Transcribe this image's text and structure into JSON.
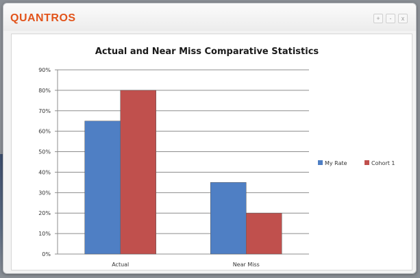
{
  "window": {
    "logo_text": "QUANTROS",
    "buttons": {
      "add": "+",
      "minimize": "-",
      "close": "x"
    }
  },
  "colors": {
    "my_rate": "#4f7fc4",
    "cohort": "#c0504d",
    "logo": "#e2541b"
  },
  "chart_data": {
    "type": "bar",
    "title": "Actual and Near Miss Comparative Statistics",
    "categories": [
      "Actual",
      "Near Miss"
    ],
    "series": [
      {
        "name": "My Rate",
        "values": [
          65,
          35
        ]
      },
      {
        "name": "Cohort 1",
        "values": [
          80,
          20
        ]
      }
    ],
    "ylim": [
      0,
      90
    ],
    "yticks": [
      "0%",
      "10%",
      "20%",
      "30%",
      "40%",
      "50%",
      "60%",
      "70%",
      "80%",
      "90%"
    ],
    "grid": true,
    "legend": "right"
  }
}
